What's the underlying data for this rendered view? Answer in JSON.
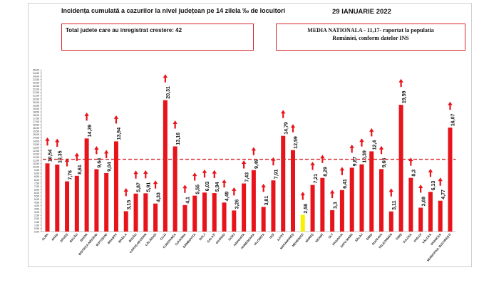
{
  "header": {
    "title": "Incidența cumulată a cazurilor la nivel județean pe 14 zilela ‰ de locuitori",
    "date": "29 IANUARIE 2022"
  },
  "summary_box": {
    "text": "Total judete care au inregistrat crestere: 42"
  },
  "national_box": {
    "line1": "MEDIA NATIONALA - 11,17-  raportat la populatia",
    "line2": "României, conform datelor INS"
  },
  "colors": {
    "bar": "#e8141b",
    "highlight_bar": "#f7f000",
    "reference_line": "#d7262c",
    "arrow": "#e8141b"
  },
  "chart_data": {
    "type": "bar",
    "categories": [
      "ALBA",
      "ARAD",
      "ARGEȘ",
      "BACĂU",
      "BIHOR",
      "BISTRIȚA-NĂSĂUD",
      "BOTOȘANI",
      "BRAȘOV",
      "BRĂILA",
      "BUZĂU",
      "CARAȘ-SEVERIN",
      "CĂLĂRAȘI",
      "CLUJ",
      "CONSTANȚA",
      "COVASNA",
      "DÂMBOVIȚA",
      "DOLJ",
      "GALAȚI",
      "GIURGIU",
      "GORJ",
      "HARGHITA",
      "HUNEDOARA",
      "IALOMIȚA",
      "IAȘI",
      "ILFOV",
      "MARAMUREȘ",
      "MEHEDINȚI",
      "MUREȘ",
      "NEAMȚ",
      "OLT",
      "PRAHOVA",
      "SATU MARE",
      "SĂLAJ",
      "SIBIU",
      "SUCEAVA",
      "TELEORMAN",
      "TIMIȘ",
      "TULCEA",
      "VASLUI",
      "VÂLCEA",
      "VRANCEA",
      "MUNICIPIUL BUCUREȘTI"
    ],
    "value_labels": [
      "10,54",
      "10,35",
      "7,76",
      "8,61",
      "14,39",
      "9,64",
      "9,04",
      "13,94",
      "3,15",
      "5,87",
      "5,91",
      "4,33",
      "20,31",
      "13,16",
      "4,1",
      "5,55",
      "6,03",
      "5,94",
      "4,49",
      "3,26",
      "7,43",
      "9,49",
      "3,81",
      "7,91",
      "14,79",
      "12,59",
      "2,58",
      "7,21",
      "8,29",
      "3,3",
      "6,41",
      "9,87",
      "10,39",
      "12,4",
      "9,66",
      "3,11",
      "19,59",
      "8,3",
      "3,69",
      "6,13",
      "4,77",
      "16,07"
    ],
    "values": [
      10.54,
      10.35,
      7.76,
      8.61,
      14.39,
      9.64,
      9.04,
      13.94,
      3.15,
      5.87,
      5.91,
      4.33,
      20.31,
      13.16,
      4.1,
      5.55,
      6.03,
      5.94,
      4.49,
      3.26,
      7.43,
      9.49,
      3.81,
      7.91,
      14.79,
      12.59,
      2.58,
      7.21,
      8.29,
      3.3,
      6.41,
      9.87,
      10.39,
      12.4,
      9.66,
      3.11,
      19.59,
      8.3,
      3.69,
      6.13,
      4.77,
      16.07
    ],
    "highlight": [
      "MEHEDINȚI"
    ],
    "all_rising": true,
    "reference_line": 11.17,
    "ylim": [
      0,
      25
    ],
    "y_tick_step": 0.5,
    "grid": false,
    "legend": "none",
    "title": "Incidența cumulată a cazurilor la nivel județean pe 14 zilela ‰ de locuitori",
    "xlabel": "",
    "ylabel": ""
  }
}
